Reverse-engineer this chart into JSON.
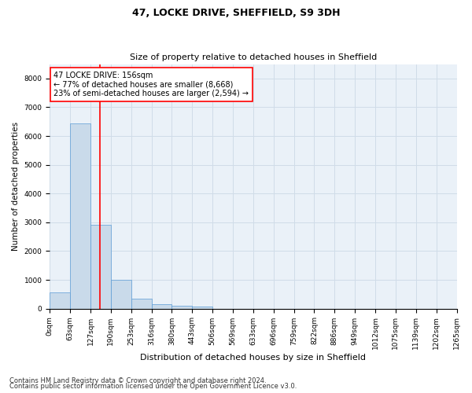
{
  "title_line1": "47, LOCKE DRIVE, SHEFFIELD, S9 3DH",
  "title_line2": "Size of property relative to detached houses in Sheffield",
  "xlabel": "Distribution of detached houses by size in Sheffield",
  "ylabel": "Number of detached properties",
  "bar_color": "#c9daea",
  "bar_edge_color": "#5b9bd5",
  "bar_heights": [
    570,
    6430,
    2920,
    990,
    340,
    140,
    90,
    60,
    0,
    0,
    0,
    0,
    0,
    0,
    0,
    0,
    0,
    0,
    0,
    0
  ],
  "x_labels": [
    "0sqm",
    "63sqm",
    "127sqm",
    "190sqm",
    "253sqm",
    "316sqm",
    "380sqm",
    "443sqm",
    "506sqm",
    "569sqm",
    "633sqm",
    "696sqm",
    "759sqm",
    "822sqm",
    "886sqm",
    "949sqm",
    "1012sqm",
    "1075sqm",
    "1139sqm",
    "1202sqm",
    "1265sqm"
  ],
  "ylim": [
    0,
    8500
  ],
  "yticks": [
    0,
    1000,
    2000,
    3000,
    4000,
    5000,
    6000,
    7000,
    8000
  ],
  "annotation_text": "47 LOCKE DRIVE: 156sqm\n← 77% of detached houses are smaller (8,668)\n23% of semi-detached houses are larger (2,594) →",
  "annotation_box_color": "white",
  "annotation_border_color": "red",
  "vline_color": "red",
  "grid_color": "#d0dce8",
  "bg_color": "#eaf1f8",
  "footer_line1": "Contains HM Land Registry data © Crown copyright and database right 2024.",
  "footer_line2": "Contains public sector information licensed under the Open Government Licence v3.0.",
  "title_fontsize": 9,
  "subtitle_fontsize": 8,
  "ylabel_fontsize": 7.5,
  "xlabel_fontsize": 8,
  "tick_fontsize": 6.5,
  "annotation_fontsize": 7,
  "footer_fontsize": 6
}
